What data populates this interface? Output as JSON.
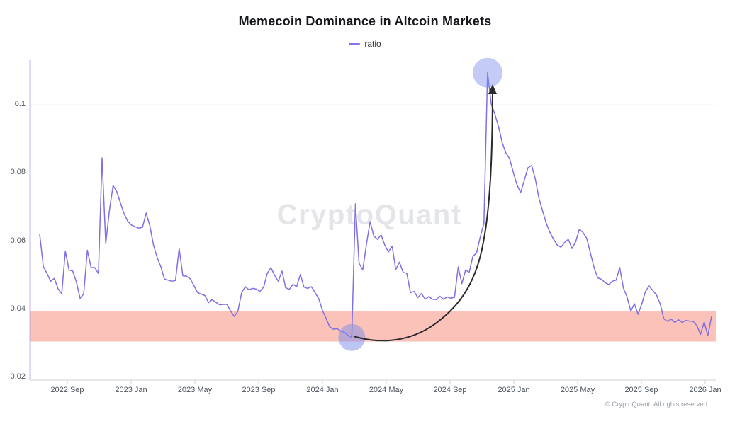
{
  "title": "Memecoin Dominance in Altcoin Markets",
  "legend": {
    "label": "ratio",
    "line_color": "#8177e8"
  },
  "watermark": "CryptoQuant",
  "footer": "© CryptoQuant, All rights reserved",
  "colors": {
    "series_line": "#7f70e4",
    "y_axis_line": "#968ce8",
    "x_axis_line": "#d9dade",
    "tick_mark": "#cfd1d6",
    "grid_line": "#f4f4f7",
    "band_fill": "#fbc2b9",
    "marker_fill": "#7b8bec",
    "arrow": "#2a2a2e",
    "tick_text": "#4d545c",
    "watermark_text": "#e3e5e9",
    "footer_text": "#9aa0a8"
  },
  "chart_data": {
    "type": "line",
    "title": "Memecoin Dominance in Altcoin Markets",
    "legend_entries": [
      "ratio"
    ],
    "grid": "faint-horizontal",
    "series": [
      {
        "name": "ratio",
        "x_start_decimal_year": 2022.5222,
        "x_step_decimal_year": 0.019185,
        "values": [
          0.062,
          0.0525,
          0.0505,
          0.0482,
          0.049,
          0.046,
          0.0445,
          0.057,
          0.0515,
          0.0512,
          0.048,
          0.0432,
          0.0445,
          0.0573,
          0.0522,
          0.0522,
          0.0505,
          0.0844,
          0.0592,
          0.069,
          0.0763,
          0.0745,
          0.0712,
          0.068,
          0.0658,
          0.0647,
          0.0642,
          0.0638,
          0.064,
          0.0682,
          0.0645,
          0.0588,
          0.0552,
          0.0525,
          0.0488,
          0.0485,
          0.0482,
          0.0484,
          0.0578,
          0.0498,
          0.0497,
          0.0489,
          0.047,
          0.0449,
          0.0444,
          0.044,
          0.0419,
          0.0428,
          0.042,
          0.0413,
          0.0414,
          0.0414,
          0.0395,
          0.0379,
          0.0394,
          0.0448,
          0.0466,
          0.0457,
          0.0461,
          0.0459,
          0.0452,
          0.0465,
          0.0505,
          0.0522,
          0.0499,
          0.0482,
          0.0512,
          0.0463,
          0.0458,
          0.0473,
          0.0466,
          0.0502,
          0.0465,
          0.0461,
          0.0466,
          0.0449,
          0.0431,
          0.0397,
          0.0373,
          0.0348,
          0.0341,
          0.0343,
          0.0336,
          0.0332,
          0.0323,
          0.0317,
          0.0709,
          0.0535,
          0.0515,
          0.059,
          0.0657,
          0.0615,
          0.0605,
          0.0618,
          0.0588,
          0.0568,
          0.0585,
          0.0516,
          0.0538,
          0.0508,
          0.0505,
          0.0448,
          0.0452,
          0.0434,
          0.0446,
          0.0429,
          0.0437,
          0.0429,
          0.0428,
          0.0438,
          0.0429,
          0.0436,
          0.0432,
          0.0435,
          0.0524,
          0.0475,
          0.0515,
          0.0508,
          0.0555,
          0.0565,
          0.0612,
          0.0652,
          0.1094,
          0.1002,
          0.0972,
          0.0935,
          0.0888,
          0.0858,
          0.0842,
          0.0802,
          0.0765,
          0.0742,
          0.0778,
          0.0815,
          0.0822,
          0.0782,
          0.0725,
          0.0688,
          0.0652,
          0.0625,
          0.0605,
          0.0588,
          0.0582,
          0.0596,
          0.0605,
          0.0578,
          0.0598,
          0.0635,
          0.0625,
          0.0608,
          0.0565,
          0.0522,
          0.0492,
          0.0488,
          0.0478,
          0.0472,
          0.0482,
          0.0485,
          0.0522,
          0.0462,
          0.0435,
          0.0394,
          0.0416,
          0.0385,
          0.0415,
          0.0452,
          0.0468,
          0.0455,
          0.0442,
          0.0416,
          0.0372,
          0.0364,
          0.0371,
          0.0361,
          0.0369,
          0.0361,
          0.0367,
          0.0365,
          0.0364,
          0.0352,
          0.0326,
          0.0362,
          0.0322,
          0.0378
        ]
      }
    ],
    "x_axis": {
      "tick_labels": [
        "2022 Sep",
        "2023 Jan",
        "2023 May",
        "2023 Sep",
        "2024 Jan",
        "2024 May",
        "2024 Sep",
        "2025 Jan",
        "2025 May",
        "2025 Sep",
        "2026 Jan"
      ],
      "tick_years": [
        2022.6667,
        2023.0,
        2023.3333,
        2023.6667,
        2024.0,
        2024.3333,
        2024.6667,
        2025.0,
        2025.3333,
        2025.6667,
        2026.0
      ]
    },
    "y_axis": {
      "tick_labels": [
        "0.02",
        "0.04",
        "0.06",
        "0.08",
        "0.1"
      ],
      "tick_values": [
        0.02,
        0.04,
        0.06,
        0.08,
        0.1
      ],
      "range": [
        0.02,
        0.115
      ]
    },
    "highlight_band": {
      "from": 0.0305,
      "to": 0.0395
    },
    "annotations": {
      "low_marker": {
        "year": 2024.153,
        "value": 0.0317,
        "radius": 19
      },
      "high_marker": {
        "year": 2024.863,
        "value": 0.1094,
        "radius": 21
      },
      "arrow_from_low_to_high": true
    }
  }
}
